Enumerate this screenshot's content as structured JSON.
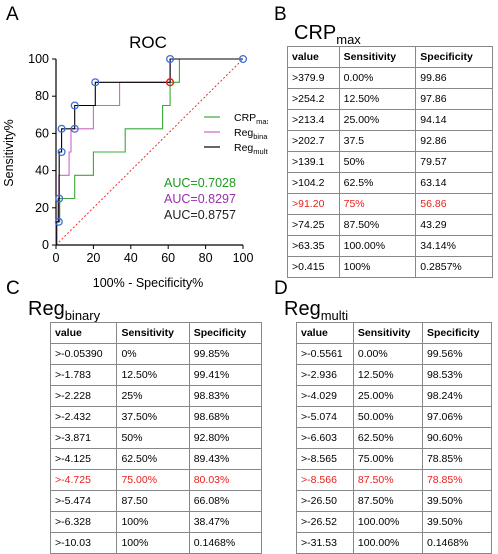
{
  "panels": {
    "a": "A",
    "b": "B",
    "c": "C",
    "d": "D"
  },
  "chart_data": {
    "type": "line",
    "title": "ROC",
    "xlabel": "100% - Specificity%",
    "ylabel": "Sensitivity%",
    "xlim": [
      0,
      100
    ],
    "ylim": [
      0,
      100
    ],
    "xticks": [
      "0",
      "20",
      "40",
      "60",
      "80",
      "100"
    ],
    "yticks": [
      "0",
      "20",
      "40",
      "60",
      "80",
      "100"
    ],
    "legend_placement": "right",
    "series": [
      {
        "name": "CRP",
        "name_sub": "max",
        "color": "#3aa83a",
        "points": [
          [
            0,
            0
          ],
          [
            0.3,
            0
          ],
          [
            0.3,
            12.5
          ],
          [
            2,
            12.5
          ],
          [
            2,
            25
          ],
          [
            10,
            25
          ],
          [
            10,
            37.5
          ],
          [
            20,
            37.5
          ],
          [
            20,
            50
          ],
          [
            37,
            50
          ],
          [
            37,
            62.5
          ],
          [
            57,
            62.5
          ],
          [
            57,
            75
          ],
          [
            61,
            75
          ],
          [
            61,
            87.5
          ],
          [
            66,
            87.5
          ],
          [
            66,
            100
          ],
          [
            100,
            100
          ]
        ]
      },
      {
        "name": "Reg",
        "name_sub": "binary",
        "color": "#cc66cc",
        "points": [
          [
            0,
            0
          ],
          [
            0.1,
            0
          ],
          [
            0.1,
            12.5
          ],
          [
            1,
            12.5
          ],
          [
            1,
            25
          ],
          [
            1.5,
            25
          ],
          [
            1.5,
            37.5
          ],
          [
            7,
            37.5
          ],
          [
            7,
            50
          ],
          [
            8,
            50
          ],
          [
            8,
            62.5
          ],
          [
            20,
            62.5
          ],
          [
            20,
            75
          ],
          [
            34,
            75
          ],
          [
            34,
            87.5
          ],
          [
            61,
            87.5
          ],
          [
            61,
            100
          ],
          [
            100,
            100
          ]
        ]
      },
      {
        "name": "Reg",
        "name_sub": "multi",
        "color": "#000000",
        "points": [
          [
            0,
            0
          ],
          [
            0.4,
            0
          ],
          [
            0.4,
            12.5
          ],
          [
            1.5,
            12.5
          ],
          [
            1.5,
            25
          ],
          [
            1.7,
            25
          ],
          [
            1.7,
            37.5
          ],
          [
            1.7,
            50
          ],
          [
            3,
            50
          ],
          [
            3,
            62.5
          ],
          [
            10,
            62.5
          ],
          [
            10,
            75
          ],
          [
            21,
            75
          ],
          [
            21,
            87.5
          ],
          [
            61,
            87.5
          ],
          [
            61,
            100
          ],
          [
            100,
            100
          ]
        ]
      }
    ],
    "marker_points": [
      [
        1.5,
        12.5
      ],
      [
        1.7,
        25
      ],
      [
        3,
        50
      ],
      [
        3,
        62.5
      ],
      [
        10,
        62.5
      ],
      [
        10,
        75
      ],
      [
        21,
        87.5
      ],
      [
        61,
        100
      ],
      [
        100,
        100
      ]
    ],
    "highlight_point": [
      61,
      87.5
    ],
    "highlight_color": "#e8201c",
    "auc": [
      {
        "text": "AUC=0.7028",
        "color": "#1d9a1d"
      },
      {
        "text": "AUC=0.8297",
        "color": "#9b2fae"
      },
      {
        "text": "AUC=0.8757",
        "color": "#222222"
      }
    ]
  },
  "tables": {
    "crp": {
      "title": "CRP",
      "title_sub": "max",
      "headers": [
        "value",
        "Sensitivity",
        "Specificity"
      ],
      "rows": [
        [
          ">379.9",
          "0.00%",
          "99.86"
        ],
        [
          ">254.2",
          "12.50%",
          "97.86"
        ],
        [
          ">213.4",
          "25.00%",
          "94.14"
        ],
        [
          ">202.7",
          "37.5",
          "92.86"
        ],
        [
          ">139.1",
          "50%",
          "79.57"
        ],
        [
          ">104.2",
          "62.5%",
          "63.14"
        ],
        [
          ">91.20",
          "75%",
          "56.86"
        ],
        [
          ">74.25",
          "87.50%",
          "43.29"
        ],
        [
          ">63.35",
          "100.00%",
          "34.14%"
        ],
        [
          ">0.415",
          "100%",
          "0.2857%"
        ]
      ],
      "highlight_row": 6
    },
    "binary": {
      "title": "Reg",
      "title_sub": "binary",
      "headers": [
        "value",
        "Sensitivity",
        "Specificity"
      ],
      "rows": [
        [
          ">-0.05390",
          "0%",
          "99.85%"
        ],
        [
          ">-1.783",
          "12.50%",
          "99.41%"
        ],
        [
          ">-2.228",
          "25%",
          "98.83%"
        ],
        [
          ">-2.432",
          "37.50%",
          "98.68%"
        ],
        [
          ">-3.871",
          "50%",
          "92.80%"
        ],
        [
          ">-4.125",
          "62.50%",
          "89.43%"
        ],
        [
          ">-4.725",
          "75.00%",
          "80.03%"
        ],
        [
          ">-5.474",
          "87.50",
          "66.08%"
        ],
        [
          ">-6.328",
          "100%",
          "38.47%"
        ],
        [
          ">-10.03",
          "100%",
          "0.1468%"
        ]
      ],
      "highlight_row": 6
    },
    "multi": {
      "title": "Reg",
      "title_sub": "multi",
      "headers": [
        "value",
        "Sensitivity",
        "Specificity"
      ],
      "rows": [
        [
          ">-0.5561",
          "0.00%",
          "99.56%"
        ],
        [
          ">-2.936",
          "12.50%",
          "98.53%"
        ],
        [
          ">-4.029",
          "25.00%",
          "98.24%"
        ],
        [
          ">-5.074",
          "50.00%",
          "97.06%"
        ],
        [
          ">-6.603",
          "62.50%",
          "90.60%"
        ],
        [
          ">-8.565",
          "75.00%",
          "78.85%"
        ],
        [
          ">-8.566",
          "87.50%",
          "78.85%"
        ],
        [
          ">-26.50",
          "87.50%",
          "39.50%"
        ],
        [
          ">-26.52",
          "100.00%",
          "39.50%"
        ],
        [
          ">-31.53",
          "100.00%",
          "0.1468%"
        ]
      ],
      "highlight_row": 6
    }
  }
}
